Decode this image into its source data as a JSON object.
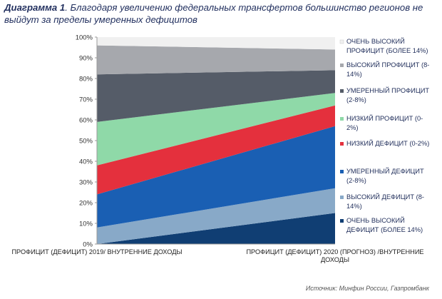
{
  "title_prefix": "Диаграмма 1",
  "title_sep": ". ",
  "title_text": "Благодаря увеличению федеральных трансфертов большинство регионов не выйдут за пределы умеренных дефицитов",
  "source": "Источник: Минфин России, Газпромбанк",
  "colors": [
    "#103e73",
    "#88a9c8",
    "#1a5fb3",
    "#e4303d",
    "#8fd9a8",
    "#555c68",
    "#a6a8ad",
    "#f0f0f0"
  ],
  "chart_data": {
    "type": "area",
    "stacked": true,
    "categories": [
      "ПРОФИЦИТ (ДЕФИЦИТ) 2019/ ВНУТРЕННИЕ ДОХОДЫ",
      "ПРОФИЦИТ (ДЕФИЦИТ) 2020 (ПРОГНОЗ) /ВНУТРЕННИЕ ДОХОДЫ"
    ],
    "category_lines": [
      [
        "ПРОФИЦИТ (ДЕФИЦИТ) 2019/ ВНУТРЕННИЕ ДОХОДЫ"
      ],
      [
        "ПРОФИЦИТ (ДЕФИЦИТ) 2020 (ПРОГНОЗ) /ВНУТРЕННИЕ",
        "ДОХОДЫ"
      ]
    ],
    "series": [
      {
        "name": "ОЧЕНЬ ВЫСОКИЙ ДЕФИЦИТ (БОЛЕЕ 14%)",
        "lines": [
          "ОЧЕНЬ ВЫСОКИЙ",
          "ДЕФИЦИТ (БОЛЕЕ 14%)"
        ],
        "values": [
          0,
          15
        ]
      },
      {
        "name": "ВЫСОКИЙ ДЕФИЦИТ (8-14%)",
        "lines": [
          "ВЫСОКИЙ ДЕФИЦИТ (8-",
          "14%)"
        ],
        "values": [
          8,
          12
        ]
      },
      {
        "name": "УМЕРЕННЫЙ ДЕФИЦИТ (2-8%)",
        "lines": [
          "УМЕРЕННЫЙ ДЕФИЦИТ",
          "(2-8%)"
        ],
        "values": [
          16,
          30
        ]
      },
      {
        "name": "НИЗКИЙ ДЕФИЦИТ (0-2%)",
        "lines": [
          "НИЗКИЙ ДЕФИЦИТ (0-2%)"
        ],
        "values": [
          14,
          10
        ]
      },
      {
        "name": "НИЗКИЙ ПРОФИЦИТ (0-2%)",
        "lines": [
          "НИЗКИЙ ПРОФИЦИТ (0-",
          "2%)"
        ],
        "values": [
          21,
          6
        ]
      },
      {
        "name": "УМЕРЕННЫЙ ПРОФИЦИТ (2-8%)",
        "lines": [
          "УМЕРЕННЫЙ ПРОФИЦИТ",
          "(2-8%)"
        ],
        "values": [
          23,
          11
        ]
      },
      {
        "name": "ВЫСОКИЙ ПРОФИЦИТ (8-14%)",
        "lines": [
          "ВЫСОКИЙ ПРОФИЦИТ (8-",
          "14%)"
        ],
        "values": [
          14,
          10
        ]
      },
      {
        "name": "ОЧЕНЬ ВЫСОКИЙ ПРОФИЦИТ (БОЛЕЕ 14%)",
        "lines": [
          "ОЧЕНЬ ВЫСОКИЙ",
          "ПРОФИЦИТ (БОЛЕЕ 14%)"
        ],
        "values": [
          4,
          6
        ]
      }
    ],
    "y_ticks": [
      "0%",
      "10%",
      "20%",
      "30%",
      "40%",
      "50%",
      "60%",
      "70%",
      "80%",
      "90%",
      "100%"
    ],
    "ylim": [
      0,
      100
    ],
    "grid": false,
    "legend_position": "right"
  }
}
